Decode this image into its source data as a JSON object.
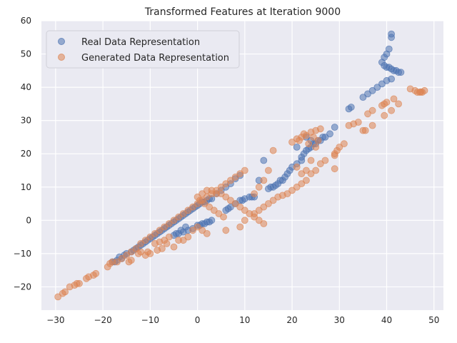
{
  "chart_data": {
    "type": "scatter",
    "title": "Transformed Features at Iteration 9000",
    "xlabel": "",
    "ylabel": "",
    "xlim": [
      -33,
      52
    ],
    "ylim": [
      -27,
      60
    ],
    "xticks": [
      -30,
      -20,
      -10,
      0,
      10,
      20,
      30,
      40,
      50
    ],
    "yticks": [
      -20,
      -10,
      0,
      10,
      20,
      30,
      40,
      50,
      60
    ],
    "grid": true,
    "legend_position": "top-left",
    "series": [
      {
        "name": "Real Data Representation",
        "color": "#4C72B0",
        "points": [
          [
            -18,
            -12.5
          ],
          [
            -17,
            -12
          ],
          [
            -16,
            -11.5
          ],
          [
            -15,
            -10
          ],
          [
            -14,
            -9.5
          ],
          [
            -13,
            -8.5
          ],
          [
            -12,
            -7.5
          ],
          [
            -11,
            -6.5
          ],
          [
            -10,
            -5.5
          ],
          [
            -9,
            -4.5
          ],
          [
            -8,
            -3.5
          ],
          [
            -7,
            -2.5
          ],
          [
            -6,
            -1.5
          ],
          [
            -5,
            -0.5
          ],
          [
            -4,
            0.5
          ],
          [
            -3,
            1.5
          ],
          [
            -2,
            2.5
          ],
          [
            -1,
            3.5
          ],
          [
            0,
            4.5
          ],
          [
            1,
            5.5
          ],
          [
            2,
            6
          ],
          [
            3,
            6.5
          ],
          [
            4,
            8
          ],
          [
            5,
            9
          ],
          [
            6,
            10
          ],
          [
            7,
            11
          ],
          [
            8,
            12.5
          ],
          [
            9,
            13.5
          ],
          [
            -17.5,
            -12.5
          ],
          [
            -16.5,
            -11
          ],
          [
            -15.5,
            -10.5
          ],
          [
            -13.5,
            -9
          ],
          [
            -12.5,
            -8
          ],
          [
            -11.5,
            -7
          ],
          [
            -10.5,
            -6
          ],
          [
            -9.5,
            -5
          ],
          [
            -8.5,
            -4
          ],
          [
            -7.5,
            -3
          ],
          [
            -6.5,
            -2
          ],
          [
            -5.5,
            -1
          ],
          [
            -4.5,
            0
          ],
          [
            -3.5,
            1
          ],
          [
            -2.5,
            2
          ],
          [
            -1.5,
            3
          ],
          [
            -0.5,
            4
          ],
          [
            0.5,
            5
          ],
          [
            1.5,
            5.5
          ],
          [
            2.5,
            6.5
          ],
          [
            -5,
            -4.5
          ],
          [
            -4,
            -4
          ],
          [
            -3,
            -3.5
          ],
          [
            -2,
            -3
          ],
          [
            -1,
            -2.5
          ],
          [
            0,
            -1.5
          ],
          [
            1,
            -1
          ],
          [
            2,
            -0.5
          ],
          [
            3,
            0
          ],
          [
            -4.5,
            -4
          ],
          [
            -3.5,
            -3
          ],
          [
            -2.5,
            -2
          ],
          [
            1.5,
            -1
          ],
          [
            2.5,
            -0.5
          ],
          [
            0.5,
            -1.5
          ],
          [
            6,
            3
          ],
          [
            7,
            4
          ],
          [
            8,
            5
          ],
          [
            9,
            6
          ],
          [
            10,
            6.5
          ],
          [
            11,
            7
          ],
          [
            12,
            7
          ],
          [
            13,
            12
          ],
          [
            14,
            18
          ],
          [
            15,
            9.5
          ],
          [
            16,
            10
          ],
          [
            17,
            11
          ],
          [
            18,
            12
          ],
          [
            19,
            14
          ],
          [
            19.5,
            15
          ],
          [
            20,
            16
          ],
          [
            21,
            17
          ],
          [
            22,
            19
          ],
          [
            23,
            21
          ],
          [
            24,
            22
          ],
          [
            25,
            23
          ],
          [
            26,
            24
          ],
          [
            27,
            25
          ],
          [
            28,
            26
          ],
          [
            29,
            28
          ],
          [
            6.5,
            3.5
          ],
          [
            9.5,
            6
          ],
          [
            11.5,
            7
          ],
          [
            15.5,
            10
          ],
          [
            16.5,
            10.5
          ],
          [
            17.5,
            12
          ],
          [
            18.5,
            13
          ],
          [
            22.5,
            20
          ],
          [
            23.5,
            21.5
          ],
          [
            24.5,
            23
          ],
          [
            25.5,
            24
          ],
          [
            26.5,
            25
          ],
          [
            22,
            18
          ],
          [
            23,
            25
          ],
          [
            24,
            24
          ],
          [
            21,
            22
          ],
          [
            32,
            33.5
          ],
          [
            32.5,
            34
          ],
          [
            35,
            37
          ],
          [
            36,
            38
          ],
          [
            37,
            39
          ],
          [
            38,
            40
          ],
          [
            39,
            41
          ],
          [
            40,
            42
          ],
          [
            41,
            42.5
          ],
          [
            39,
            47.5
          ],
          [
            39.5,
            49
          ],
          [
            40,
            50
          ],
          [
            40.5,
            51.5
          ],
          [
            41,
            55
          ],
          [
            41,
            56
          ],
          [
            40,
            46
          ],
          [
            41,
            45.5
          ],
          [
            41.5,
            45
          ],
          [
            42,
            45
          ],
          [
            42.5,
            44.5
          ],
          [
            43,
            44.5
          ],
          [
            39.5,
            46.5
          ],
          [
            40.5,
            46
          ]
        ]
      },
      {
        "name": "Generated Data Representation",
        "color": "#DD8452",
        "points": [
          [
            -29.5,
            -23
          ],
          [
            -28.5,
            -22
          ],
          [
            -28,
            -21.5
          ],
          [
            -27,
            -20
          ],
          [
            -26,
            -19.5
          ],
          [
            -25.5,
            -19
          ],
          [
            -25,
            -19
          ],
          [
            -23.5,
            -17.5
          ],
          [
            -23,
            -17
          ],
          [
            -22,
            -16.5
          ],
          [
            -21.5,
            -16
          ],
          [
            -19,
            -14
          ],
          [
            -18.5,
            -13
          ],
          [
            -18,
            -12.5
          ],
          [
            -17,
            -12.5
          ],
          [
            -16,
            -11.5
          ],
          [
            -15,
            -10.5
          ],
          [
            -14,
            -9.5
          ],
          [
            -13,
            -8.5
          ],
          [
            -12,
            -7
          ],
          [
            -11,
            -6
          ],
          [
            -10,
            -5
          ],
          [
            -9,
            -4
          ],
          [
            -8,
            -3
          ],
          [
            -7,
            -2
          ],
          [
            -6,
            -1
          ],
          [
            -5,
            0
          ],
          [
            -4,
            1
          ],
          [
            -3,
            2
          ],
          [
            -2,
            3
          ],
          [
            -1,
            4
          ],
          [
            0,
            5
          ],
          [
            1,
            6
          ],
          [
            2,
            7
          ],
          [
            3,
            8
          ],
          [
            4,
            9
          ],
          [
            5,
            10
          ],
          [
            6,
            11
          ],
          [
            7,
            12
          ],
          [
            8,
            13
          ],
          [
            9,
            14
          ],
          [
            10,
            15
          ],
          [
            -14.5,
            -12.5
          ],
          [
            -14,
            -12
          ],
          [
            -12,
            -9.5
          ],
          [
            -11,
            -10.5
          ],
          [
            -10,
            -10
          ],
          [
            -9,
            -7
          ],
          [
            -8,
            -6.5
          ],
          [
            -7,
            -6
          ],
          [
            -6,
            -5
          ],
          [
            -5,
            -8
          ],
          [
            -4,
            -6
          ],
          [
            -3,
            -6
          ],
          [
            -2,
            -5
          ],
          [
            -1,
            -3
          ],
          [
            0,
            -2
          ],
          [
            1,
            -3
          ],
          [
            2,
            -4
          ],
          [
            -12.5,
            -10
          ],
          [
            -10.5,
            -9.5
          ],
          [
            -8.5,
            -9
          ],
          [
            -6.5,
            -7
          ],
          [
            -7.5,
            -8.5
          ],
          [
            0,
            7
          ],
          [
            1,
            8
          ],
          [
            2,
            9
          ],
          [
            3,
            9
          ],
          [
            4,
            8
          ],
          [
            5,
            8
          ],
          [
            6,
            7
          ],
          [
            7,
            6
          ],
          [
            8,
            5
          ],
          [
            9,
            4
          ],
          [
            10,
            3
          ],
          [
            11,
            2
          ],
          [
            12,
            1
          ],
          [
            13,
            0
          ],
          [
            14,
            -1
          ],
          [
            0.5,
            6
          ],
          [
            1.5,
            5
          ],
          [
            2.5,
            4
          ],
          [
            3.5,
            3
          ],
          [
            4.5,
            2
          ],
          [
            5.5,
            1
          ],
          [
            6,
            -3
          ],
          [
            9,
            -2
          ],
          [
            10,
            0
          ],
          [
            12,
            2
          ],
          [
            13,
            3
          ],
          [
            14,
            4
          ],
          [
            15,
            5
          ],
          [
            16,
            6
          ],
          [
            17,
            7
          ],
          [
            18,
            7.5
          ],
          [
            19,
            8
          ],
          [
            20,
            9
          ],
          [
            21,
            10
          ],
          [
            22,
            11
          ],
          [
            23,
            12
          ],
          [
            24,
            14
          ],
          [
            25,
            15
          ],
          [
            26,
            17
          ],
          [
            27,
            18
          ],
          [
            29,
            20
          ],
          [
            29.5,
            21
          ],
          [
            30,
            22
          ],
          [
            31,
            23
          ],
          [
            14,
            12
          ],
          [
            15,
            15
          ],
          [
            16,
            21
          ],
          [
            12,
            8
          ],
          [
            13,
            10
          ],
          [
            20,
            23.5
          ],
          [
            21,
            24.5
          ],
          [
            22,
            25
          ],
          [
            23,
            25.5
          ],
          [
            24,
            26.5
          ],
          [
            25,
            27
          ],
          [
            26,
            27.5
          ],
          [
            21.5,
            24
          ],
          [
            22.5,
            26
          ],
          [
            23.5,
            23
          ],
          [
            24.5,
            25
          ],
          [
            25.5,
            24
          ],
          [
            25,
            22
          ],
          [
            24,
            18
          ],
          [
            23,
            15
          ],
          [
            22,
            14
          ],
          [
            29,
            19.5
          ],
          [
            29,
            15.5
          ],
          [
            21,
            16
          ],
          [
            32,
            28.5
          ],
          [
            33,
            29
          ],
          [
            34,
            29.5
          ],
          [
            35,
            27
          ],
          [
            35.5,
            27
          ],
          [
            36,
            32
          ],
          [
            37,
            33
          ],
          [
            37,
            28.5
          ],
          [
            39,
            34.5
          ],
          [
            39.5,
            35
          ],
          [
            40,
            35.5
          ],
          [
            39.5,
            31.5
          ],
          [
            41,
            33
          ],
          [
            41.5,
            36.5
          ],
          [
            42.5,
            35
          ],
          [
            45,
            39.5
          ],
          [
            46,
            39
          ],
          [
            46.5,
            38.5
          ],
          [
            47,
            38.5
          ],
          [
            47.5,
            38.5
          ],
          [
            48,
            39
          ],
          [
            47.2,
            38.6
          ]
        ]
      }
    ]
  }
}
